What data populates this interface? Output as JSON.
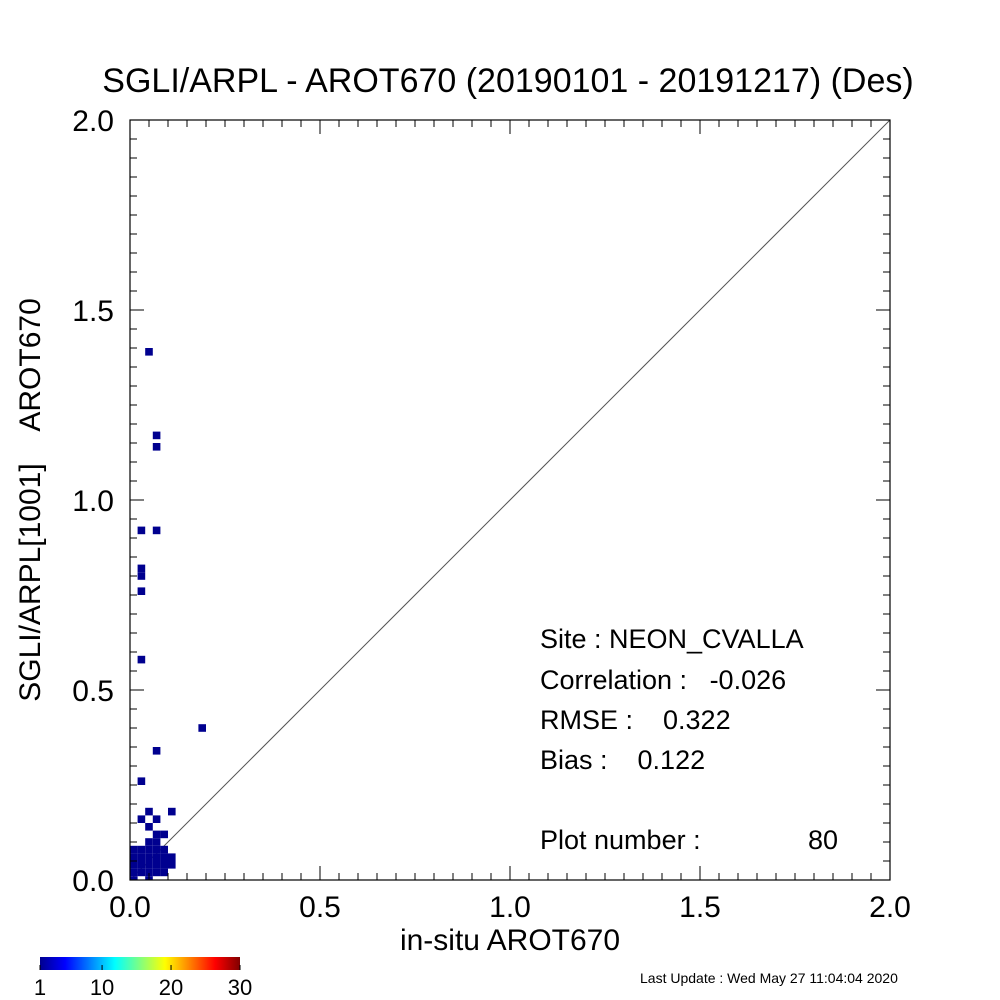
{
  "chart_data": {
    "type": "heatmap",
    "title": "SGLI/ARPL - AROT670 (20190101 - 20191217) (Des)",
    "xlabel": "in-situ AROT670",
    "ylabel": "SGLI/ARPL[1001]    AROT670",
    "xlim": [
      0.0,
      2.0
    ],
    "ylim": [
      0.0,
      2.0
    ],
    "x_ticks": [
      "0.0",
      "0.5",
      "1.0",
      "1.5",
      "2.0"
    ],
    "y_ticks": [
      "0.0",
      "0.5",
      "1.0",
      "1.5",
      "2.0"
    ],
    "grid": false,
    "reference_line": "1:1",
    "bin_size": 0.02,
    "cell_color": "#00008f",
    "cells": [
      {
        "x": 0.05,
        "y": 1.39
      },
      {
        "x": 0.07,
        "y": 1.17
      },
      {
        "x": 0.07,
        "y": 1.14
      },
      {
        "x": 0.03,
        "y": 0.92
      },
      {
        "x": 0.07,
        "y": 0.92
      },
      {
        "x": 0.03,
        "y": 0.82
      },
      {
        "x": 0.03,
        "y": 0.8
      },
      {
        "x": 0.03,
        "y": 0.76
      },
      {
        "x": 0.03,
        "y": 0.58
      },
      {
        "x": 0.19,
        "y": 0.4
      },
      {
        "x": 0.07,
        "y": 0.34
      },
      {
        "x": 0.03,
        "y": 0.26
      },
      {
        "x": 0.05,
        "y": 0.18
      },
      {
        "x": 0.11,
        "y": 0.18
      },
      {
        "x": 0.03,
        "y": 0.16
      },
      {
        "x": 0.07,
        "y": 0.16
      },
      {
        "x": 0.05,
        "y": 0.14
      },
      {
        "x": 0.07,
        "y": 0.12
      },
      {
        "x": 0.09,
        "y": 0.12
      },
      {
        "x": 0.05,
        "y": 0.1
      },
      {
        "x": 0.07,
        "y": 0.1
      },
      {
        "x": 0.01,
        "y": 0.08
      },
      {
        "x": 0.03,
        "y": 0.08
      },
      {
        "x": 0.05,
        "y": 0.08
      },
      {
        "x": 0.07,
        "y": 0.08
      },
      {
        "x": 0.09,
        "y": 0.08
      },
      {
        "x": 0.01,
        "y": 0.06
      },
      {
        "x": 0.03,
        "y": 0.06
      },
      {
        "x": 0.05,
        "y": 0.06
      },
      {
        "x": 0.07,
        "y": 0.06
      },
      {
        "x": 0.09,
        "y": 0.06
      },
      {
        "x": 0.11,
        "y": 0.06
      },
      {
        "x": 0.01,
        "y": 0.04
      },
      {
        "x": 0.03,
        "y": 0.04
      },
      {
        "x": 0.05,
        "y": 0.04
      },
      {
        "x": 0.07,
        "y": 0.04
      },
      {
        "x": 0.09,
        "y": 0.04
      },
      {
        "x": 0.11,
        "y": 0.04
      },
      {
        "x": 0.01,
        "y": 0.02
      },
      {
        "x": 0.03,
        "y": 0.02
      },
      {
        "x": 0.05,
        "y": 0.02
      },
      {
        "x": 0.07,
        "y": 0.02
      },
      {
        "x": 0.09,
        "y": 0.02
      },
      {
        "x": 0.01,
        "y": 0.0
      },
      {
        "x": 0.05,
        "y": 0.0
      }
    ],
    "stats": {
      "site": "Site : NEON_CVALLA",
      "correlation": "Correlation :   -0.026",
      "rmse": "RMSE :    0.322",
      "bias": "Bias :    0.122",
      "plot_number_label": "Plot number :",
      "plot_number_value": "80"
    },
    "colorbar": {
      "min": 1,
      "max": 30,
      "ticks": [
        "1",
        "10",
        "20",
        "30"
      ],
      "tick_values": [
        1,
        10,
        20,
        30
      ],
      "colors": [
        "#00008f",
        "#0000ff",
        "#0080ff",
        "#00ffff",
        "#80ff80",
        "#ffff00",
        "#ff8000",
        "#ff0000",
        "#800000"
      ]
    },
    "footer": "Last Update : Wed May 27 11:04:04 2020"
  }
}
